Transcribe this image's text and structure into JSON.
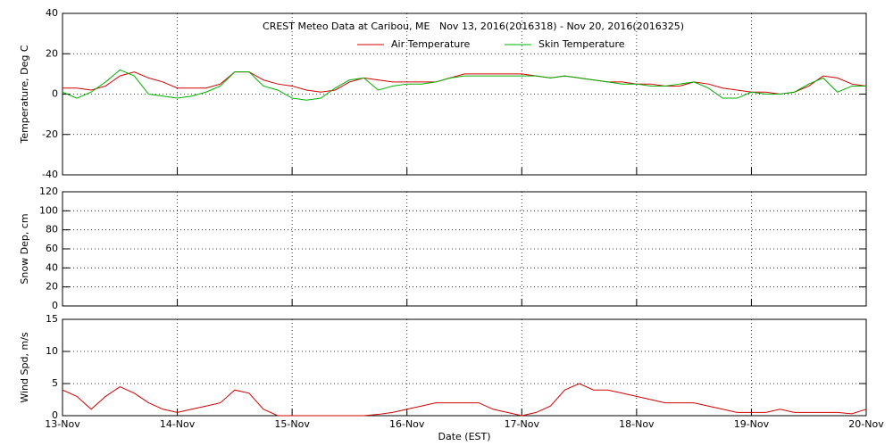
{
  "chart_data": [
    {
      "type": "line",
      "title": "CREST Meteo Data at Caribou, ME   Nov 13, 2016(2016318) - Nov 20, 2016(2016325)",
      "ylabel": "Temperature, Deg C",
      "x": [
        0,
        0.125,
        0.25,
        0.375,
        0.5,
        0.625,
        0.75,
        0.875,
        1,
        1.125,
        1.25,
        1.375,
        1.5,
        1.625,
        1.75,
        1.875,
        2,
        2.125,
        2.25,
        2.375,
        2.5,
        2.625,
        2.75,
        2.875,
        3,
        3.125,
        3.25,
        3.375,
        3.5,
        3.625,
        3.75,
        3.875,
        4,
        4.125,
        4.25,
        4.375,
        4.5,
        4.625,
        4.75,
        4.875,
        5,
        5.125,
        5.25,
        5.375,
        5.5,
        5.625,
        5.75,
        5.875,
        6,
        6.125,
        6.25,
        6.375,
        6.5,
        6.625,
        6.75,
        6.875,
        7
      ],
      "xlim": [
        0,
        7
      ],
      "xticks": [
        0,
        1,
        2,
        3,
        4,
        5,
        6,
        7
      ],
      "ylim": [
        -40,
        40
      ],
      "yticks": [
        -40,
        -20,
        0,
        20,
        40
      ],
      "grid": true,
      "legend": "upper center",
      "series": [
        {
          "name": "Air Temperature",
          "color": "#d00000",
          "values": [
            3,
            3,
            2,
            4,
            9,
            11,
            8,
            6,
            3,
            3,
            3,
            5,
            11,
            11,
            7,
            5,
            4,
            2,
            1,
            2,
            6,
            8,
            7,
            6,
            6,
            6,
            6,
            8,
            10,
            10,
            10,
            10,
            10,
            9,
            8,
            9,
            8,
            7,
            6,
            6,
            5,
            5,
            4,
            4,
            6,
            5,
            3,
            2,
            1,
            1,
            0,
            1,
            4,
            9,
            8,
            5,
            4
          ]
        },
        {
          "name": "Skin Temperature",
          "color": "#00b000",
          "values": [
            1,
            -2,
            1,
            6,
            12,
            9,
            0,
            -1,
            -2,
            -1,
            1,
            4,
            11,
            11,
            4,
            2,
            -2,
            -3,
            -2,
            3,
            7,
            8,
            2,
            4,
            5,
            5,
            6,
            8,
            9,
            9,
            9,
            9,
            9,
            9,
            8,
            9,
            8,
            7,
            6,
            5,
            5,
            4,
            4,
            5,
            6,
            3,
            -2,
            -2,
            1,
            0,
            0,
            1,
            5,
            8,
            1,
            4,
            4
          ]
        }
      ]
    },
    {
      "type": "line",
      "ylabel": "Snow Dep, cm",
      "xlim": [
        0,
        7
      ],
      "xticks": [
        0,
        1,
        2,
        3,
        4,
        5,
        6,
        7
      ],
      "ylim": [
        0,
        120
      ],
      "yticks": [
        0,
        20,
        40,
        60,
        80,
        100,
        120
      ],
      "grid": true,
      "series": []
    },
    {
      "type": "line",
      "ylabel": "Wind Spd, m/s",
      "xlabel": "Date (EST)",
      "x": [
        0,
        0.125,
        0.25,
        0.375,
        0.5,
        0.625,
        0.75,
        0.875,
        1,
        1.125,
        1.25,
        1.375,
        1.5,
        1.625,
        1.75,
        1.875,
        2,
        2.125,
        2.25,
        2.375,
        2.5,
        2.625,
        2.75,
        2.875,
        3,
        3.125,
        3.25,
        3.375,
        3.5,
        3.625,
        3.75,
        3.875,
        4,
        4.125,
        4.25,
        4.375,
        4.5,
        4.625,
        4.75,
        4.875,
        5,
        5.125,
        5.25,
        5.375,
        5.5,
        5.625,
        5.75,
        5.875,
        6,
        6.125,
        6.25,
        6.375,
        6.5,
        6.625,
        6.75,
        6.875,
        7
      ],
      "xlim": [
        0,
        7
      ],
      "xticks": [
        {
          "value": 0,
          "label": "13-Nov"
        },
        {
          "value": 1,
          "label": "14-Nov"
        },
        {
          "value": 2,
          "label": "15-Nov"
        },
        {
          "value": 3,
          "label": "16-Nov"
        },
        {
          "value": 4,
          "label": "17-Nov"
        },
        {
          "value": 5,
          "label": "18-Nov"
        },
        {
          "value": 6,
          "label": "19-Nov"
        },
        {
          "value": 7,
          "label": "20-Nov"
        }
      ],
      "ylim": [
        0,
        15
      ],
      "yticks": [
        0,
        5,
        10,
        15
      ],
      "grid": true,
      "series": [
        {
          "color": "#d00000",
          "values": [
            4,
            3,
            1,
            3,
            4.5,
            3.5,
            2,
            1,
            0.5,
            1,
            1.5,
            2,
            4,
            3.5,
            1,
            0,
            0,
            0,
            0,
            0,
            0,
            0,
            0.2,
            0.5,
            1,
            1.5,
            2,
            2,
            2,
            2,
            1,
            0.5,
            0,
            0.5,
            1.5,
            4,
            5,
            4,
            4,
            3.5,
            3,
            2.5,
            2,
            2,
            2,
            1.5,
            1,
            0.5,
            0.5,
            0.5,
            1,
            0.5,
            0.5,
            0.5,
            0.5,
            0.3,
            1
          ]
        }
      ]
    }
  ]
}
